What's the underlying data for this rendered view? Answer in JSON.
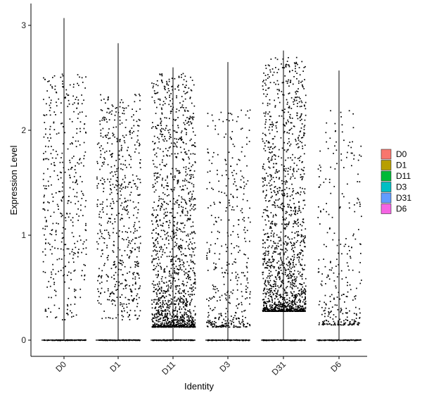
{
  "chart_data": {
    "type": "violin-jitter",
    "xlabel": "Identity",
    "ylabel": "Expression Level",
    "categories": [
      "D0",
      "D1",
      "D11",
      "D3",
      "D31",
      "D6"
    ],
    "ylim": [
      -0.18,
      3.2
    ],
    "yticks": [
      0,
      1,
      2,
      3
    ],
    "point_color": "#000000",
    "legend_position": "right",
    "series": [
      {
        "name": "D0",
        "color": "#F8766D",
        "max": 3.07,
        "n_points": 420,
        "dist": "uniform",
        "lo": 0.2,
        "hi": 2.55
      },
      {
        "name": "D1",
        "color": "#B79F00",
        "max": 2.83,
        "n_points": 600,
        "dist": "uniform",
        "lo": 0.2,
        "hi": 2.35
      },
      {
        "name": "D11",
        "color": "#00BA38",
        "max": 2.6,
        "n_points": 1500,
        "dist": "skewed",
        "lo": 0.13,
        "hi": 2.55
      },
      {
        "name": "D3",
        "color": "#00BFC4",
        "max": 2.65,
        "n_points": 420,
        "dist": "skewed",
        "lo": 0.13,
        "hi": 2.2
      },
      {
        "name": "D31",
        "color": "#619CFF",
        "max": 2.76,
        "n_points": 1500,
        "dist": "skewed",
        "lo": 0.28,
        "hi": 2.7
      },
      {
        "name": "D6",
        "color": "#F564E3",
        "max": 2.57,
        "n_points": 300,
        "dist": "skewed",
        "lo": 0.15,
        "hi": 2.2
      }
    ],
    "legend": [
      "D0",
      "D1",
      "D11",
      "D3",
      "D31",
      "D6"
    ]
  }
}
